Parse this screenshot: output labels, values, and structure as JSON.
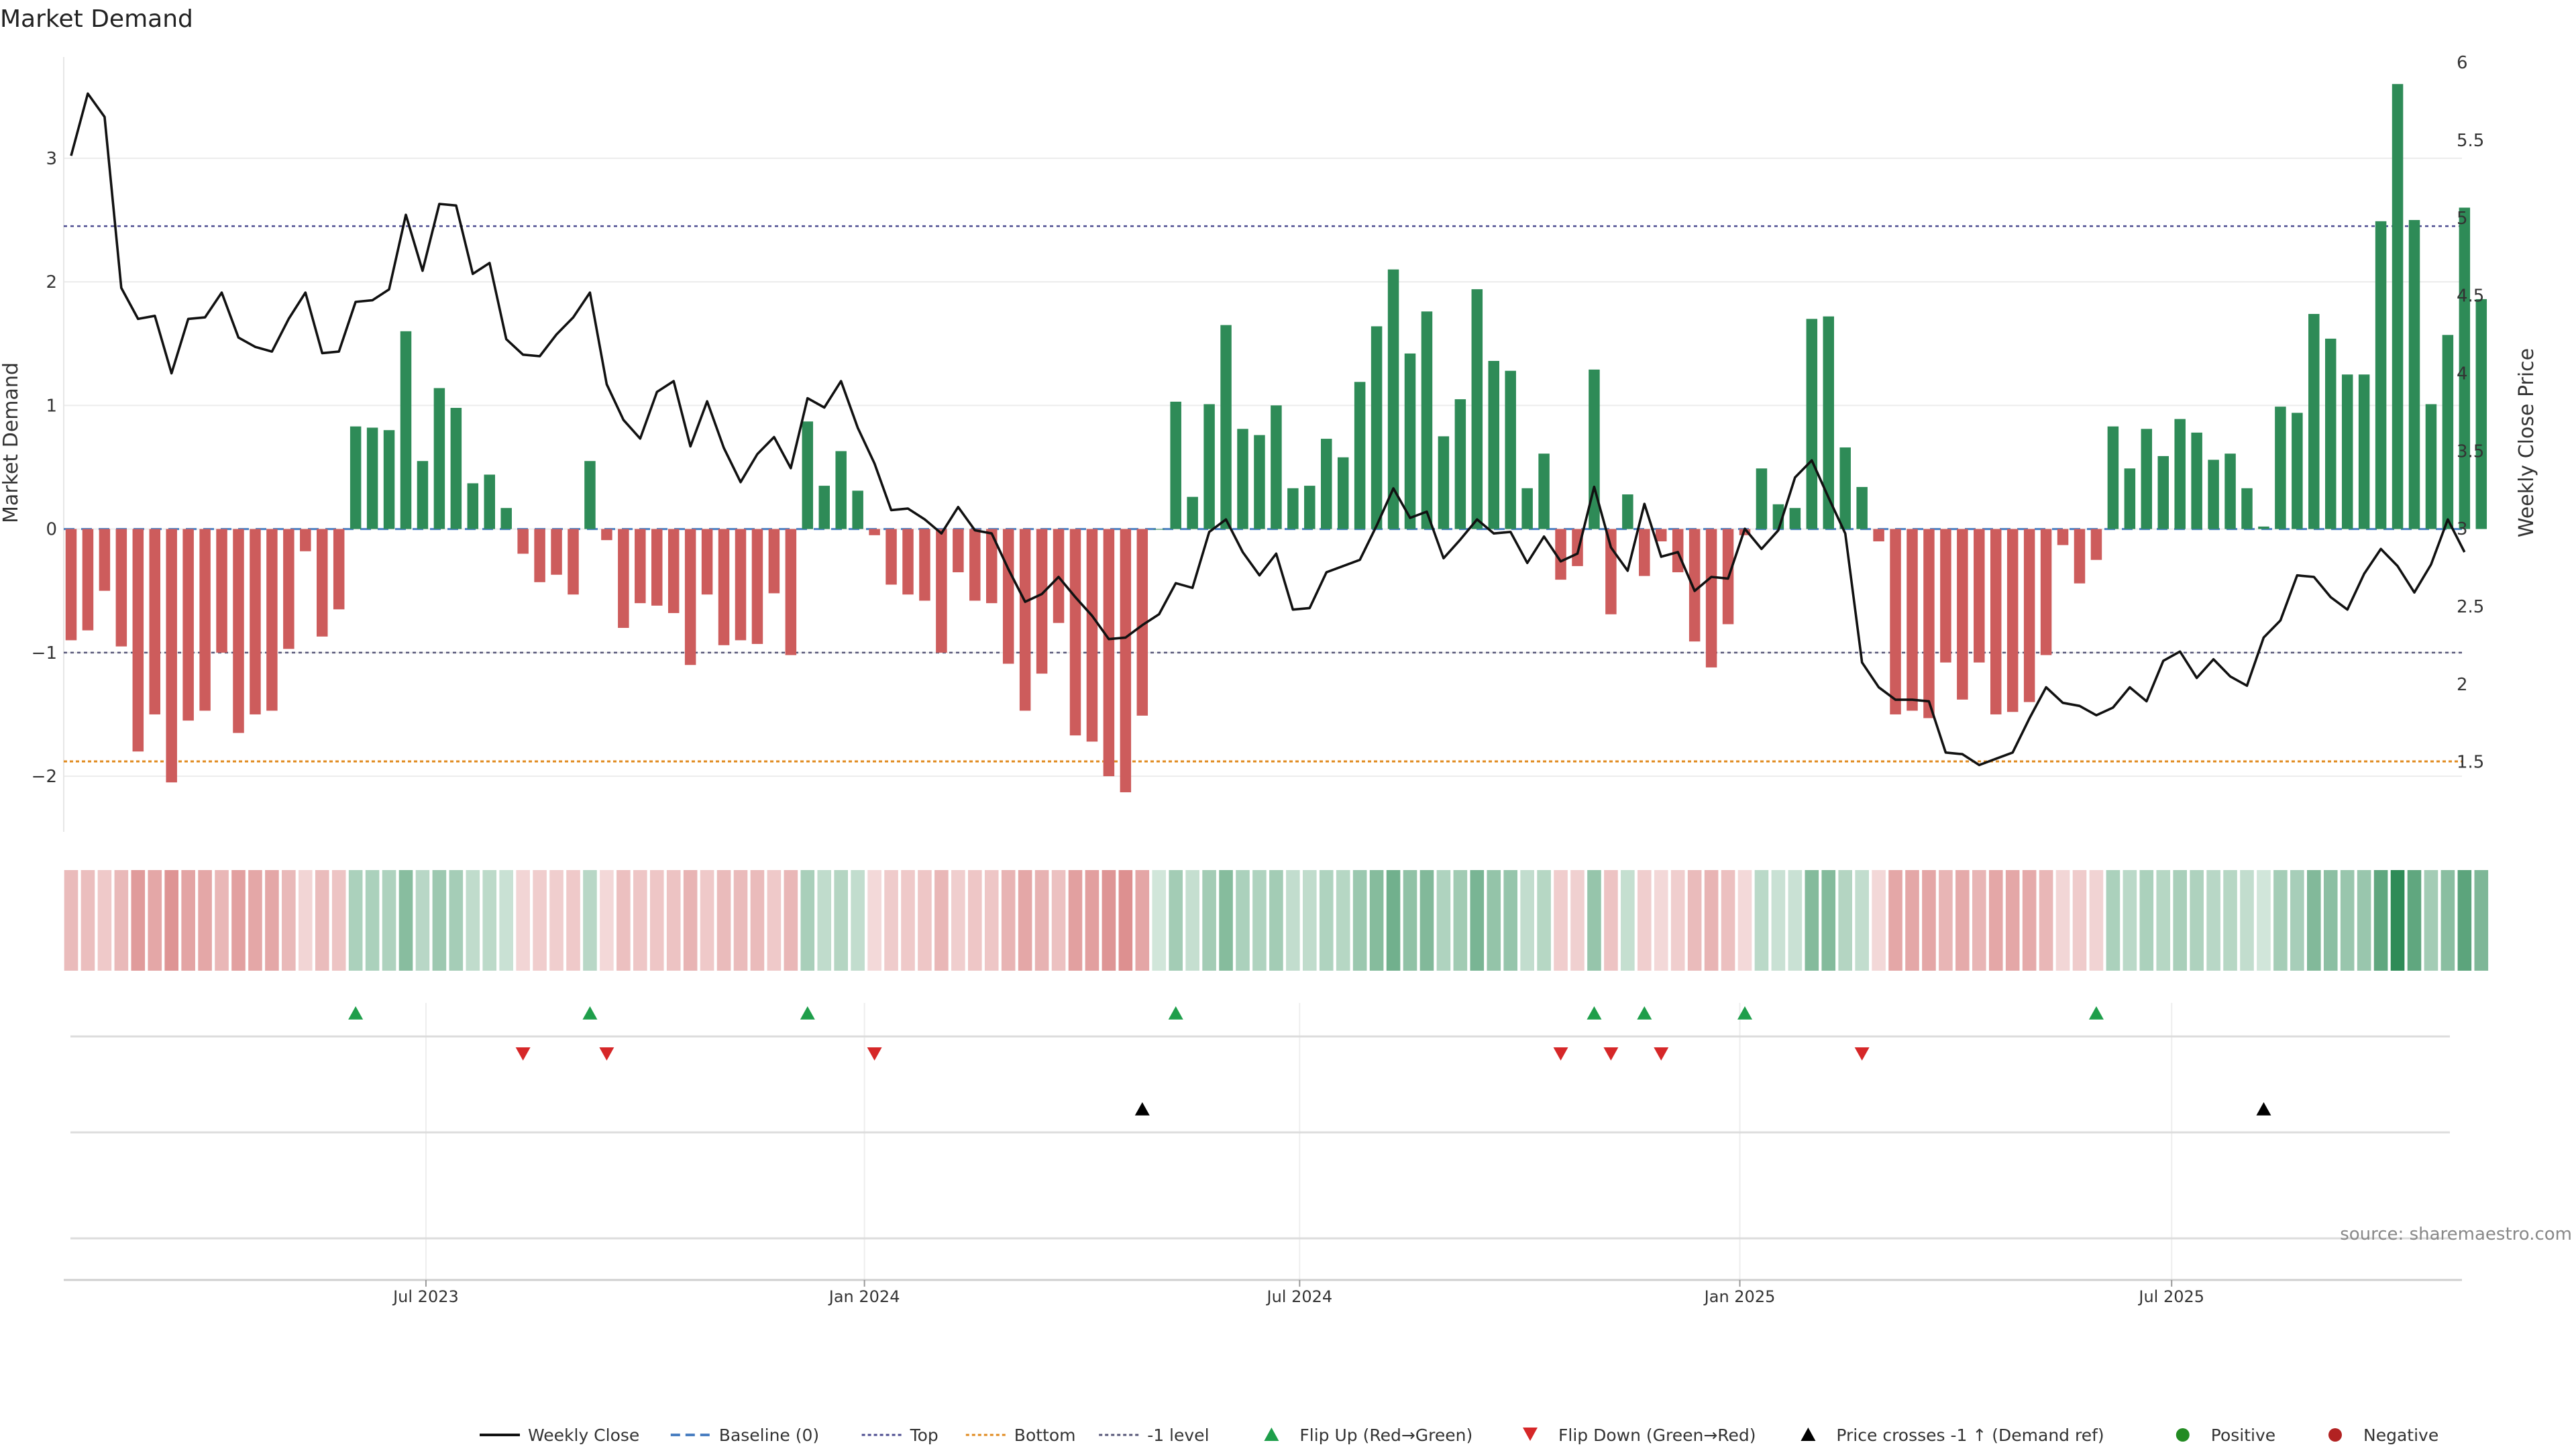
{
  "chart_data": {
    "type": "bar",
    "title": "Market Demand",
    "ylabel_left": "Market Demand",
    "ylabel_right": "Weekly Close Price",
    "source": "source: sharemaestro.com",
    "ylim_left": [
      -2.45,
      3.9
    ],
    "ylim_right": [
      1.05,
      6.1
    ],
    "left_ticks": [
      {
        "v": 3,
        "label": "3"
      },
      {
        "v": 2,
        "label": "2"
      },
      {
        "v": 1,
        "label": "1"
      },
      {
        "v": 0,
        "label": "0"
      },
      {
        "v": -1,
        "label": "−1"
      },
      {
        "v": -2,
        "label": "−2"
      }
    ],
    "right_ticks": [
      {
        "v": 6,
        "label": "6"
      },
      {
        "v": 5.5,
        "label": "5.5"
      },
      {
        "v": 5,
        "label": "5"
      },
      {
        "v": 4.5,
        "label": "4.5"
      },
      {
        "v": 4,
        "label": "4"
      },
      {
        "v": 3.5,
        "label": "3.5"
      },
      {
        "v": 3,
        "label": "3"
      },
      {
        "v": 2.5,
        "label": "2.5"
      },
      {
        "v": 2,
        "label": "2"
      },
      {
        "v": 1.5,
        "label": "1.5"
      }
    ],
    "x_ticks": [
      {
        "week": 21.2,
        "label": "Jul 2023"
      },
      {
        "week": 47.4,
        "label": "Jan 2024"
      },
      {
        "week": 73.4,
        "label": "Jul 2024"
      },
      {
        "week": 99.7,
        "label": "Jan 2025"
      },
      {
        "week": 125.5,
        "label": "Jul 2025"
      }
    ],
    "reference_lines": {
      "top": 2.45,
      "bottom": -1.88,
      "minus_one": -1.0,
      "baseline": 0
    },
    "demand": [
      -0.9,
      -0.82,
      -0.5,
      -0.95,
      -1.8,
      -1.5,
      -2.05,
      -1.55,
      -1.47,
      -1.0,
      -1.65,
      -1.5,
      -1.47,
      -0.97,
      -0.18,
      -0.87,
      -0.65,
      0.83,
      0.82,
      0.8,
      1.6,
      0.55,
      1.14,
      0.98,
      0.37,
      0.44,
      0.17,
      -0.2,
      -0.43,
      -0.37,
      -0.53,
      0.55,
      -0.09,
      -0.8,
      -0.6,
      -0.62,
      -0.68,
      -1.1,
      -0.53,
      -0.94,
      -0.9,
      -0.93,
      -0.52,
      -1.02,
      0.87,
      0.35,
      0.63,
      0.31,
      -0.05,
      -0.45,
      -0.53,
      -0.58,
      -1.0,
      -0.35,
      -0.58,
      -0.6,
      -1.09,
      -1.47,
      -1.17,
      -0.76,
      -1.67,
      -1.72,
      -2.0,
      -2.13,
      -1.51,
      0.0,
      1.03,
      0.26,
      1.01,
      1.65,
      0.81,
      0.76,
      1.0,
      0.33,
      0.35,
      0.73,
      0.58,
      1.19,
      1.64,
      2.1,
      1.42,
      1.76,
      0.75,
      1.05,
      1.94,
      1.36,
      1.28,
      0.33,
      0.61,
      -0.41,
      -0.3,
      1.29,
      -0.69,
      0.28,
      -0.38,
      -0.1,
      -0.35,
      -0.91,
      -1.12,
      -0.77,
      -0.05,
      0.49,
      0.2,
      0.17,
      1.7,
      1.72,
      0.66,
      0.34,
      -0.1,
      -1.5,
      -1.47,
      -1.53,
      -1.08,
      -1.38,
      -1.08,
      -1.5,
      -1.48,
      -1.4,
      -1.02,
      -0.13,
      -0.44,
      -0.25,
      0.83,
      0.49,
      0.81,
      0.59,
      0.89,
      0.78,
      0.56,
      0.61,
      0.33,
      0.02,
      0.99,
      0.94,
      1.74,
      1.54,
      1.25,
      1.25,
      2.49,
      3.6,
      2.5,
      1.01,
      1.57,
      2.6,
      1.86
    ],
    "weekly_close": [
      5.4,
      5.8,
      5.65,
      4.55,
      4.35,
      4.37,
      4.0,
      4.35,
      4.36,
      4.52,
      4.23,
      4.17,
      4.14,
      4.35,
      4.52,
      4.13,
      4.14,
      4.46,
      4.47,
      4.54,
      5.02,
      4.66,
      5.09,
      5.08,
      4.64,
      4.71,
      4.22,
      4.12,
      4.11,
      4.25,
      4.36,
      4.52,
      3.93,
      3.7,
      3.58,
      3.88,
      3.95,
      3.53,
      3.82,
      3.52,
      3.3,
      3.48,
      3.59,
      3.39,
      3.84,
      3.78,
      3.95,
      3.65,
      3.42,
      3.12,
      3.13,
      3.06,
      2.97,
      3.14,
      2.99,
      2.97,
      2.74,
      2.53,
      2.58,
      2.69,
      2.56,
      2.44,
      2.29,
      2.3,
      2.38,
      2.45,
      2.65,
      2.62,
      2.98,
      3.06,
      2.85,
      2.7,
      2.84,
      2.48,
      2.49,
      2.72,
      2.76,
      2.8,
      3.02,
      3.26,
      3.07,
      3.11,
      2.81,
      2.93,
      3.06,
      2.97,
      2.98,
      2.78,
      2.95,
      2.79,
      2.84,
      3.27,
      2.88,
      2.73,
      3.16,
      2.82,
      2.85,
      2.6,
      2.69,
      2.68,
      3.0,
      2.87,
      2.99,
      3.33,
      3.44,
      3.2,
      2.97,
      2.14,
      1.98,
      1.9,
      1.9,
      1.89,
      1.56,
      1.55,
      1.48,
      1.52,
      1.56,
      1.78,
      1.98,
      1.88,
      1.86,
      1.8,
      1.85,
      1.98,
      1.89,
      2.15,
      2.21,
      2.04,
      2.16,
      2.05,
      1.99,
      2.3,
      2.41,
      2.7,
      2.69,
      2.56,
      2.48,
      2.71,
      2.87,
      2.76,
      2.59,
      2.77,
      3.06,
      2.85
    ],
    "markers": {
      "flip_up_weeks": [
        17,
        31,
        44,
        66,
        91,
        94,
        100,
        121
      ],
      "flip_down_weeks": [
        27,
        32,
        48,
        89,
        92,
        95,
        107
      ],
      "price_cross_weeks": [
        64,
        131
      ]
    },
    "colors": {
      "positive_bar": "#2e8b57",
      "negative_bar": "#cd5c5c",
      "price_line": "#111111",
      "baseline": "#4a7fc1",
      "top": "#4b4b8f",
      "bottom": "#e08a1e",
      "minus_one": "#555577",
      "flip_up": "#1e9e4a",
      "flip_down": "#d62728",
      "cross": "#000000",
      "positive_dot": "#228b22",
      "negative_dot": "#b22222"
    },
    "legend": [
      {
        "label": "Weekly Close",
        "kind": "solid",
        "color": "#111111"
      },
      {
        "label": "Baseline (0)",
        "kind": "dash",
        "color": "#4a7fc1"
      },
      {
        "label": "Top",
        "kind": "dot",
        "color": "#4b4b8f"
      },
      {
        "label": "Bottom",
        "kind": "dot",
        "color": "#e08a1e"
      },
      {
        "label": "-1 level",
        "kind": "dot",
        "color": "#555577"
      },
      {
        "label": "Flip Up (Red→Green)",
        "kind": "tri-up",
        "color": "#1e9e4a"
      },
      {
        "label": "Flip Down (Green→Red)",
        "kind": "tri-down",
        "color": "#d62728"
      },
      {
        "label": "Price crosses -1 ↑ (Demand ref)",
        "kind": "tri-up",
        "color": "#000000"
      },
      {
        "label": "Positive",
        "kind": "circle",
        "color": "#228b22"
      },
      {
        "label": "Negative",
        "kind": "circle",
        "color": "#b22222"
      }
    ]
  }
}
